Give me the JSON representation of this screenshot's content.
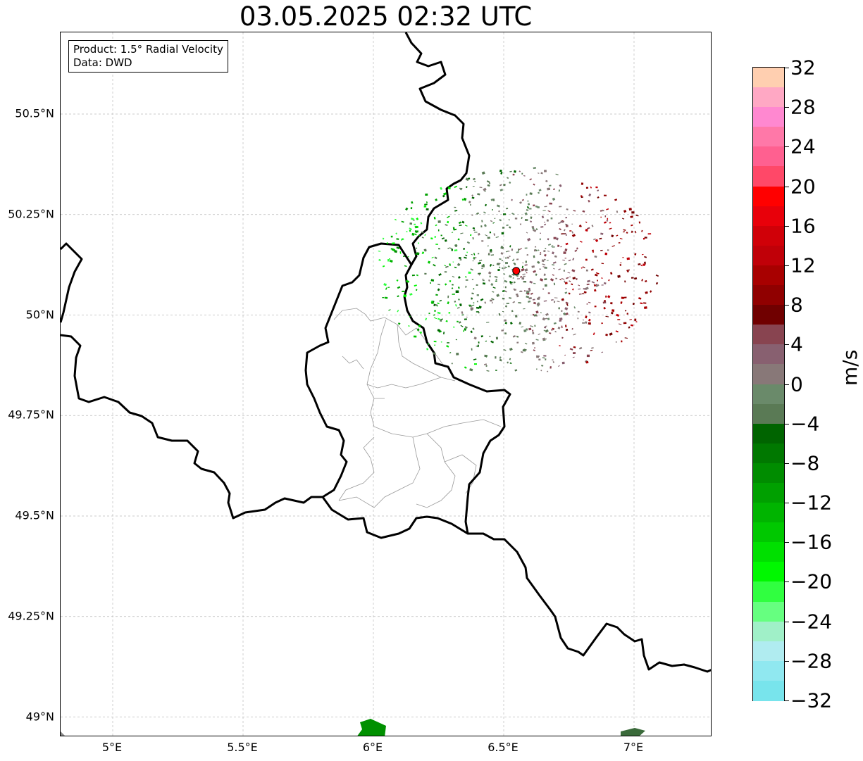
{
  "title": "03.05.2025 02:32 UTC",
  "info_box": {
    "product": "Product: 1.5° Radial Velocity",
    "source": "Data: DWD"
  },
  "map": {
    "lon_range": [
      4.8,
      7.3
    ],
    "lat_range": [
      48.95,
      50.7
    ],
    "lat_ticks": [
      {
        "value": 50.5,
        "label": "50.5°N"
      },
      {
        "value": 50.25,
        "label": "50.25°N"
      },
      {
        "value": 50.0,
        "label": "50°N"
      },
      {
        "value": 49.75,
        "label": "49.75°N"
      },
      {
        "value": 49.5,
        "label": "49.5°N"
      },
      {
        "value": 49.25,
        "label": "49.25°N"
      },
      {
        "value": 49.0,
        "label": "49°N"
      }
    ],
    "lon_ticks": [
      {
        "value": 5.0,
        "label": "5°E"
      },
      {
        "value": 5.5,
        "label": "5.5°E"
      },
      {
        "value": 6.0,
        "label": "6°E"
      },
      {
        "value": 6.5,
        "label": "6.5°E"
      },
      {
        "value": 7.0,
        "label": "7°E"
      }
    ],
    "radar_site": {
      "lon": 6.548,
      "lat": 50.11,
      "color": "#ff0000"
    },
    "gridlines": true
  },
  "colorbar": {
    "unit": "m/s",
    "range": [
      -32,
      32
    ],
    "tick_labels": [
      "32",
      "28",
      "24",
      "20",
      "16",
      "12",
      "8",
      "4",
      "0",
      "−4",
      "−8",
      "−12",
      "−16",
      "−20",
      "−24",
      "−28",
      "−32"
    ],
    "colors_top_to_bottom": [
      "#ffcfb0",
      "#ffa8c4",
      "#ff88d0",
      "#ff78a8",
      "#ff6090",
      "#ff4868",
      "#ff0000",
      "#e8000a",
      "#d00008",
      "#c00008",
      "#a80000",
      "#900000",
      "#700000",
      "#884450",
      "#886070",
      "#887878",
      "#6a8a6a",
      "#5a7a55",
      "#006400",
      "#007800",
      "#008c00",
      "#00a000",
      "#00b400",
      "#00c800",
      "#00e000",
      "#00f800",
      "#30ff40",
      "#66ff80",
      "#a0f0c8",
      "#b0ecf0",
      "#90e8f0",
      "#78e4ec"
    ]
  }
}
